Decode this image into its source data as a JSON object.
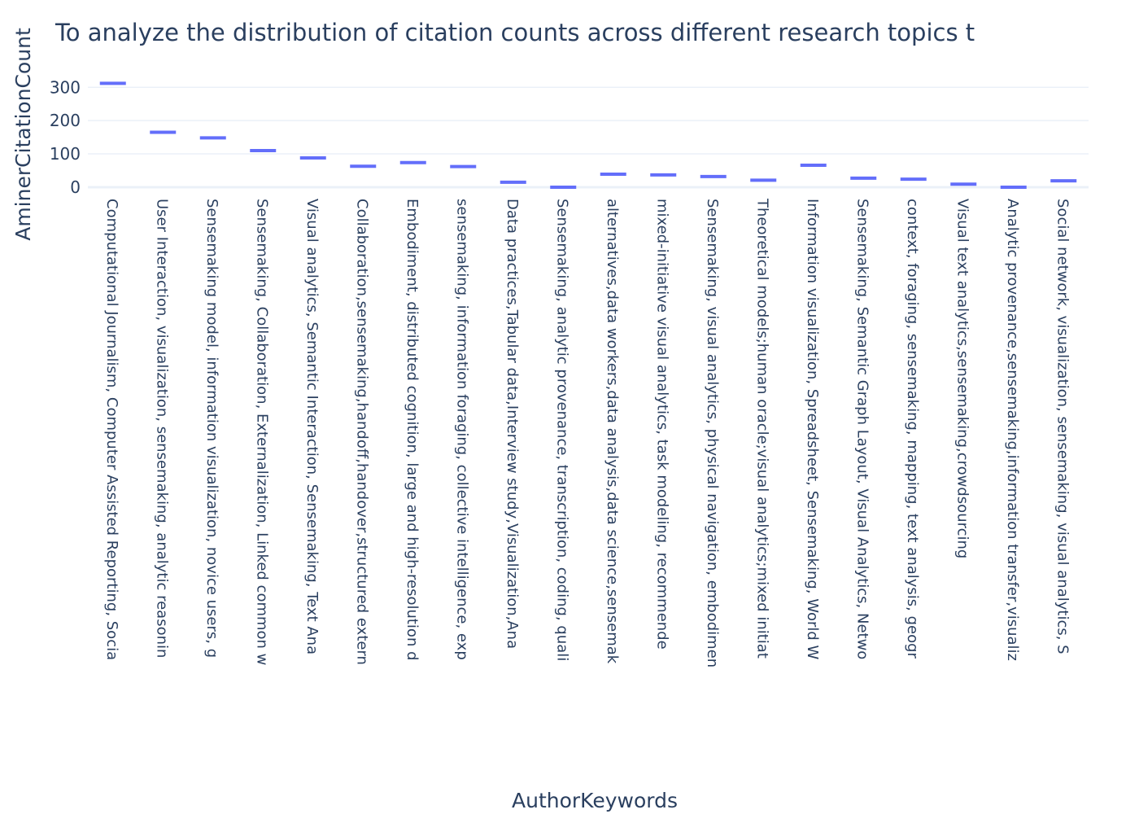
{
  "chart_data": {
    "type": "box",
    "title": "To analyze the distribution of citation counts across different research topics t",
    "xlabel": "AuthorKeywords",
    "ylabel": "AminerCitationCount",
    "ylim": [
      -5,
      330
    ],
    "yticks": [
      0,
      100,
      200,
      300
    ],
    "grid": "horizontal",
    "series_color": "#636efa",
    "categories": [
      "Computational Journalism, Computer Assisted Reporting, Socia",
      "User Interaction, visualization, sensemaking, analytic reasonin",
      "Sensemaking model, information visualization, novice users, g",
      "Sensemaking, Collaboration, Externalization, Linked common w",
      "Visual analytics, Semantic Interaction, Sensemaking, Text Ana",
      "Collaboration,sensemaking,handoff,handover,structured extern",
      "Embodiment, distributed cognition, large and high-resolution d",
      "sensemaking, information foraging, collective intelligence, exp",
      "Data practices,Tabular data,Interview study,Visualization,Ana",
      "Sensemaking, analytic provenance, transcription, coding, quali",
      "alternatives,data workers,data analysis,data science,sensemak",
      "mixed-initiative visual analytics, task modeling, recommende",
      "Sensemaking, visual analytics, physical navigation, embodimen",
      "Theoretical models;human oracle;visual analytics;mixed initiat",
      "Information visualization, Spreadsheet, Sensemaking, World W",
      "Sensemaking, Semantic Graph Layout, Visual Analytics, Netwo",
      "context, foraging, sensemaking, mapping, text analysis, geogr",
      "Visual text analytics,sensemaking,crowdsourcing",
      "Analytic provenance,sensemaking,information transfer,visualiz",
      "Social network, visualization, sensemaking, visual analytics, S"
    ],
    "values": [
      312,
      165,
      148,
      110,
      88,
      63,
      74,
      62,
      15,
      0,
      39,
      37,
      32,
      21,
      66,
      27,
      24,
      9,
      0,
      19
    ]
  }
}
